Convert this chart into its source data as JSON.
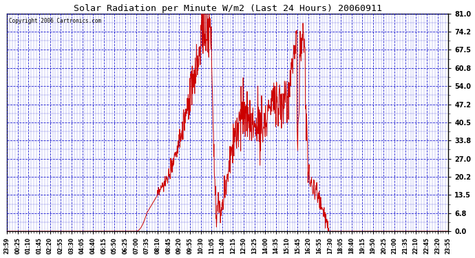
{
  "title": "Solar Radiation per Minute W/m2 (Last 24 Hours) 20060911",
  "copyright": "Copyright 2006 Cartronics.com",
  "yticks": [
    0.0,
    6.8,
    13.5,
    20.2,
    27.0,
    33.8,
    40.5,
    47.2,
    54.0,
    60.8,
    67.5,
    74.2,
    81.0
  ],
  "ylim": [
    0.0,
    81.0
  ],
  "grid_color": "#0000cc",
  "line_color": "#cc0000",
  "bg_color": "#ffffff",
  "title_color": "#000000",
  "xtick_labels": [
    "23:59",
    "00:25",
    "01:10",
    "01:45",
    "02:20",
    "02:55",
    "03:30",
    "04:05",
    "04:40",
    "05:15",
    "05:50",
    "06:25",
    "07:00",
    "07:35",
    "08:10",
    "08:45",
    "09:20",
    "09:55",
    "10:30",
    "11:05",
    "11:40",
    "12:15",
    "12:50",
    "13:25",
    "14:00",
    "14:35",
    "15:10",
    "15:45",
    "16:20",
    "16:55",
    "17:30",
    "18:05",
    "18:40",
    "19:15",
    "19:50",
    "20:25",
    "21:00",
    "21:35",
    "22:10",
    "22:45",
    "23:20",
    "23:55"
  ]
}
